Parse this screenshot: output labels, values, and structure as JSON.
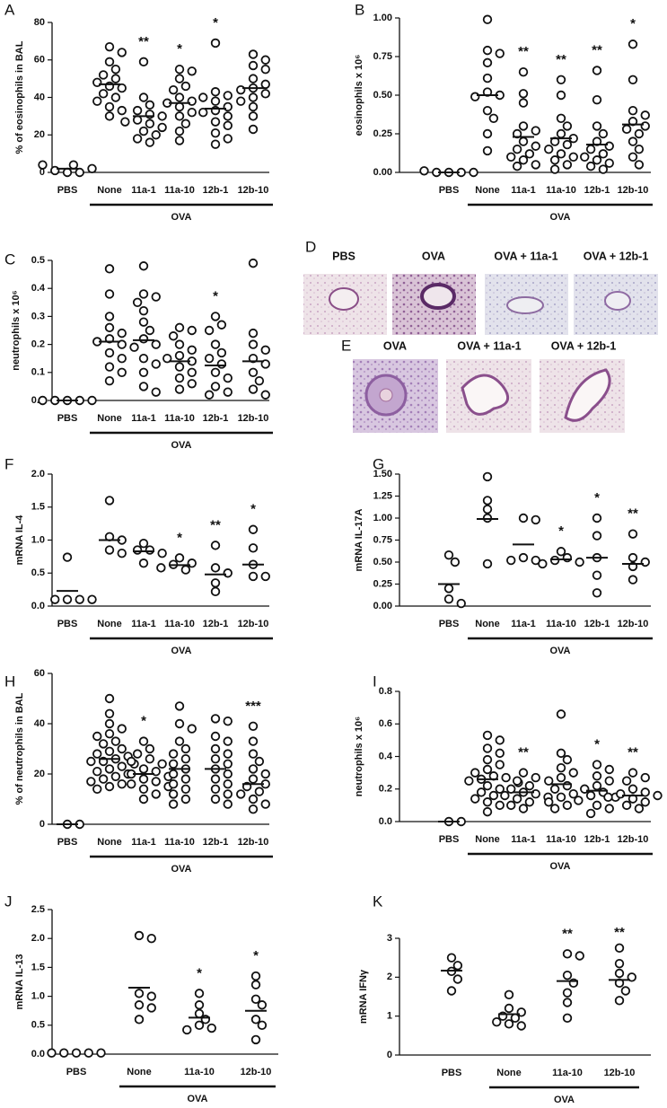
{
  "chart_data": [
    {
      "type": "dot",
      "letter": "A",
      "ylabel": "% of eosinophils in BAL",
      "group_label": "OVA",
      "categories": [
        "PBS",
        "None",
        "11a-1",
        "11a-10",
        "12b-1",
        "12b-10"
      ],
      "ylim": [
        0,
        80
      ],
      "yticks": [
        0,
        20,
        40,
        60,
        80
      ],
      "points": [
        [
          0,
          0,
          1,
          2,
          4,
          4
        ],
        [
          67,
          64,
          59,
          55,
          52,
          50,
          48,
          46,
          45,
          42,
          40,
          38,
          35,
          33,
          30
        ],
        [
          59,
          40,
          36,
          33,
          31,
          30,
          28,
          27,
          26,
          24,
          22,
          20,
          18,
          16
        ],
        [
          55,
          54,
          50,
          46,
          44,
          40,
          38,
          37,
          35,
          32,
          30,
          26,
          22,
          17
        ],
        [
          69,
          43,
          41,
          40,
          38,
          35,
          33,
          32,
          30,
          27,
          25,
          21,
          18,
          15
        ],
        [
          63,
          60,
          57,
          55,
          50,
          47,
          45,
          44,
          42,
          40,
          38,
          35,
          30,
          23
        ]
      ],
      "means": [
        2,
        47,
        30,
        37,
        34,
        45
      ],
      "significance": [
        null,
        null,
        "**",
        "*",
        "*",
        null
      ]
    },
    {
      "type": "dot",
      "letter": "B",
      "ylabel": "eosinophils x 10⁶",
      "group_label": "OVA",
      "categories": [
        "PBS",
        "None",
        "11a-1",
        "11a-10",
        "12b-1",
        "12b-10"
      ],
      "ylim": [
        0,
        1
      ],
      "yticks": [
        {
          "value": 0,
          "label": "0.00"
        },
        0.25,
        {
          "value": 0.5,
          "label": "0.50"
        },
        0.75,
        {
          "value": 1,
          "label": "1.00"
        }
      ],
      "points": [
        [
          0,
          0,
          0,
          0,
          0.01
        ],
        [
          0.99,
          0.79,
          0.77,
          0.71,
          0.61,
          0.52,
          0.5,
          0.49,
          0.4,
          0.35,
          0.25,
          0.14
        ],
        [
          0.65,
          0.51,
          0.45,
          0.3,
          0.27,
          0.25,
          0.2,
          0.17,
          0.15,
          0.12,
          0.1,
          0.08,
          0.05,
          0.04
        ],
        [
          0.6,
          0.5,
          0.35,
          0.3,
          0.25,
          0.22,
          0.2,
          0.18,
          0.15,
          0.12,
          0.1,
          0.08,
          0.05,
          0.02
        ],
        [
          0.66,
          0.47,
          0.3,
          0.25,
          0.2,
          0.17,
          0.15,
          0.12,
          0.1,
          0.08,
          0.06,
          0.04,
          0.02
        ],
        [
          0.83,
          0.6,
          0.4,
          0.37,
          0.33,
          0.3,
          0.28,
          0.25,
          0.2,
          0.15,
          0.1,
          0.05
        ]
      ],
      "means": [
        0,
        0.5,
        0.23,
        0.22,
        0.18,
        0.31
      ],
      "significance": [
        null,
        null,
        "**",
        "**",
        "**",
        "*"
      ]
    },
    {
      "type": "dot",
      "letter": "C",
      "ylabel": "neutrophils x 10⁶",
      "group_label": "OVA",
      "categories": [
        "PBS",
        "None",
        "11a-1",
        "11a-10",
        "12b-1",
        "12b-10"
      ],
      "ylim": [
        0,
        0.5
      ],
      "yticks": [
        {
          "value": 0,
          "label": "0.0"
        },
        0.1,
        0.2,
        0.3,
        0.4,
        0.5
      ],
      "points": [
        [
          0,
          0,
          0,
          0,
          0
        ],
        [
          0.47,
          0.38,
          0.3,
          0.26,
          0.24,
          0.22,
          0.21,
          0.2,
          0.19,
          0.17,
          0.15,
          0.12,
          0.1,
          0.07
        ],
        [
          0.48,
          0.38,
          0.37,
          0.35,
          0.32,
          0.28,
          0.25,
          0.22,
          0.2,
          0.15,
          0.13,
          0.1,
          0.05,
          0.03
        ],
        [
          0.26,
          0.25,
          0.23,
          0.2,
          0.18,
          0.16,
          0.15,
          0.14,
          0.12,
          0.1,
          0.08,
          0.06,
          0.04
        ],
        [
          0.3,
          0.27,
          0.25,
          0.2,
          0.17,
          0.15,
          0.13,
          0.1,
          0.08,
          0.05,
          0.03,
          0.02
        ],
        [
          0.49,
          0.24,
          0.2,
          0.18,
          0.15,
          0.13,
          0.1,
          0.07,
          0.04,
          0.02
        ]
      ],
      "means": [
        0,
        0.21,
        0.215,
        0.14,
        0.125,
        0.14
      ],
      "significance": [
        null,
        null,
        null,
        null,
        "*",
        null
      ]
    },
    {
      "type": "dot",
      "letter": "F",
      "ylabel": "mRNA IL-4",
      "group_label": "OVA",
      "categories": [
        "PBS",
        "None",
        "11a-1",
        "11a-10",
        "12b-1",
        "12b-10"
      ],
      "ylim": [
        0,
        2
      ],
      "yticks": [
        {
          "value": 0,
          "label": "0.0"
        },
        0.5,
        {
          "value": 1,
          "label": "1.0"
        },
        1.5,
        {
          "value": 2,
          "label": "2.0"
        }
      ],
      "points": [
        [
          0.74,
          0.1,
          0.1,
          0.1,
          0.1
        ],
        [
          1.6,
          1.05,
          1.0,
          0.85,
          0.8
        ],
        [
          0.95,
          0.85,
          0.85,
          0.8,
          0.65
        ],
        [
          0.73,
          0.65,
          0.63,
          0.58,
          0.55
        ],
        [
          0.92,
          0.58,
          0.5,
          0.35,
          0.22
        ],
        [
          1.16,
          0.88,
          0.63,
          0.45,
          0.45
        ]
      ],
      "means": [
        0.23,
        1.0,
        0.83,
        0.62,
        0.48,
        0.63
      ],
      "significance": [
        null,
        null,
        null,
        "*",
        "**",
        "*"
      ]
    },
    {
      "type": "dot",
      "letter": "G",
      "ylabel": "mRNA IL-17A",
      "group_label": "OVA",
      "categories": [
        "PBS",
        "None",
        "11a-1",
        "11a-10",
        "12b-1",
        "12b-10"
      ],
      "ylim": [
        0,
        1.5
      ],
      "yticks": [
        {
          "value": 0,
          "label": "0.00"
        },
        0.25,
        {
          "value": 0.5,
          "label": "0.50"
        },
        0.75,
        {
          "value": 1,
          "label": "1.00"
        },
        1.25,
        {
          "value": 1.5,
          "label": "1.50"
        }
      ],
      "points": [
        [
          0.58,
          0.5,
          0.2,
          0.08,
          0.03
        ],
        [
          1.47,
          1.2,
          1.1,
          1.0,
          0.48
        ],
        [
          1.0,
          0.98,
          0.55,
          0.52,
          0.52
        ],
        [
          0.62,
          0.55,
          0.52,
          0.5,
          0.48
        ],
        [
          1.0,
          0.8,
          0.55,
          0.35,
          0.15
        ],
        [
          0.82,
          0.55,
          0.5,
          0.45,
          0.3
        ]
      ],
      "means": [
        0.25,
        0.99,
        0.7,
        0.53,
        0.55,
        0.48
      ],
      "significance": [
        null,
        null,
        null,
        "*",
        "*",
        "**"
      ]
    },
    {
      "type": "dot",
      "letter": "H",
      "ylabel": "% of neutrophils in BAL",
      "group_label": "OVA",
      "categories": [
        "PBS",
        "None",
        "11a-1",
        "11a-10",
        "12b-1",
        "12b-10"
      ],
      "ylim": [
        0,
        60
      ],
      "yticks": [
        0,
        20,
        40,
        60
      ],
      "points": [
        [
          0,
          0
        ],
        [
          50,
          44,
          40,
          38,
          36,
          35,
          33,
          32,
          30,
          29,
          28,
          27,
          26,
          25,
          25,
          24,
          23,
          22,
          21,
          20,
          19,
          18,
          17,
          16,
          15,
          14
        ],
        [
          33,
          30,
          28,
          26,
          25,
          24,
          22,
          21,
          20,
          19,
          18,
          17,
          16,
          15,
          14,
          12,
          10
        ],
        [
          47,
          40,
          38,
          33,
          30,
          28,
          26,
          24,
          22,
          20,
          18,
          16,
          14,
          12,
          10,
          8
        ],
        [
          42,
          41,
          35,
          33,
          30,
          28,
          26,
          24,
          22,
          20,
          18,
          16,
          14,
          12,
          10,
          8
        ],
        [
          39,
          33,
          28,
          25,
          22,
          20,
          18,
          16,
          15,
          13,
          12,
          10,
          8,
          6
        ]
      ],
      "means": [
        0,
        26,
        20,
        22,
        22,
        16
      ],
      "significance": [
        null,
        null,
        "*",
        null,
        null,
        "***"
      ]
    },
    {
      "type": "dot",
      "letter": "I",
      "ylabel": "neutrophils x 10⁶",
      "group_label": "OVA",
      "categories": [
        "PBS",
        "None",
        "11a-1",
        "11a-10",
        "12b-1",
        "12b-10"
      ],
      "ylim": [
        0,
        0.8
      ],
      "yticks": [
        {
          "value": 0,
          "label": "0.0"
        },
        0.2,
        0.4,
        0.6,
        0.8
      ],
      "points": [
        [
          0,
          0
        ],
        [
          0.53,
          0.5,
          0.45,
          0.42,
          0.38,
          0.35,
          0.32,
          0.3,
          0.28,
          0.27,
          0.26,
          0.25,
          0.24,
          0.22,
          0.2,
          0.18,
          0.16,
          0.14,
          0.12,
          0.1,
          0.06
        ],
        [
          0.3,
          0.27,
          0.25,
          0.22,
          0.2,
          0.18,
          0.17,
          0.16,
          0.15,
          0.14,
          0.12,
          0.1,
          0.08
        ],
        [
          0.66,
          0.42,
          0.38,
          0.33,
          0.3,
          0.27,
          0.25,
          0.22,
          0.2,
          0.17,
          0.15,
          0.12,
          0.1,
          0.08
        ],
        [
          0.35,
          0.32,
          0.28,
          0.25,
          0.22,
          0.2,
          0.18,
          0.16,
          0.15,
          0.13,
          0.1,
          0.08,
          0.05
        ],
        [
          0.3,
          0.27,
          0.25,
          0.2,
          0.18,
          0.17,
          0.16,
          0.15,
          0.14,
          0.12,
          0.1,
          0.08
        ]
      ],
      "means": [
        0,
        0.26,
        0.18,
        0.23,
        0.19,
        0.16
      ],
      "significance": [
        null,
        null,
        "**",
        null,
        "*",
        "**"
      ]
    },
    {
      "type": "dot",
      "letter": "J",
      "ylabel": "mRNA IL-13",
      "group_label": "OVA",
      "categories": [
        "PBS",
        "None",
        "11a-10",
        "12b-10"
      ],
      "ylim": [
        0,
        2.5
      ],
      "yticks": [
        {
          "value": 0,
          "label": "0.0"
        },
        0.5,
        {
          "value": 1,
          "label": "1.0"
        },
        1.5,
        {
          "value": 2,
          "label": "2.0"
        },
        2.5
      ],
      "points": [
        [
          0.02,
          0.02,
          0.02,
          0.02,
          0.02
        ],
        [
          2.05,
          2.0,
          1.05,
          1.0,
          0.85,
          0.8,
          0.6
        ],
        [
          1.05,
          0.85,
          0.7,
          0.6,
          0.5,
          0.45,
          0.42
        ],
        [
          1.35,
          1.2,
          0.95,
          0.85,
          0.6,
          0.5,
          0.25
        ]
      ],
      "means": [
        null,
        1.15,
        0.63,
        0.75
      ],
      "significance": [
        null,
        null,
        "*",
        "*"
      ]
    },
    {
      "type": "dot",
      "letter": "K",
      "ylabel": "mRNA IFNγ",
      "group_label": "OVA",
      "categories": [
        "PBS",
        "None",
        "11a-10",
        "12b-10"
      ],
      "ylim": [
        0,
        3
      ],
      "yticks": [
        0,
        1,
        2,
        3
      ],
      "points": [
        [
          2.5,
          2.3,
          2.15,
          1.95,
          1.65
        ],
        [
          1.55,
          1.2,
          1.1,
          1.0,
          0.95,
          0.85,
          0.8,
          0.75
        ],
        [
          2.6,
          2.55,
          2.05,
          1.85,
          1.6,
          1.35,
          0.95
        ],
        [
          2.75,
          2.35,
          2.1,
          2.0,
          1.85,
          1.65,
          1.4
        ]
      ],
      "means": [
        2.17,
        1.05,
        1.9,
        1.93
      ],
      "significance": [
        null,
        null,
        "**",
        "**"
      ]
    }
  ],
  "histology": [
    {
      "letter": "D",
      "labels": [
        "PBS",
        "OVA",
        "OVA + 11a-1",
        "OVA + 12b-1"
      ]
    },
    {
      "letter": "E",
      "labels": [
        "OVA",
        "OVA + 11a-1",
        "OVA + 12b-1"
      ]
    }
  ]
}
